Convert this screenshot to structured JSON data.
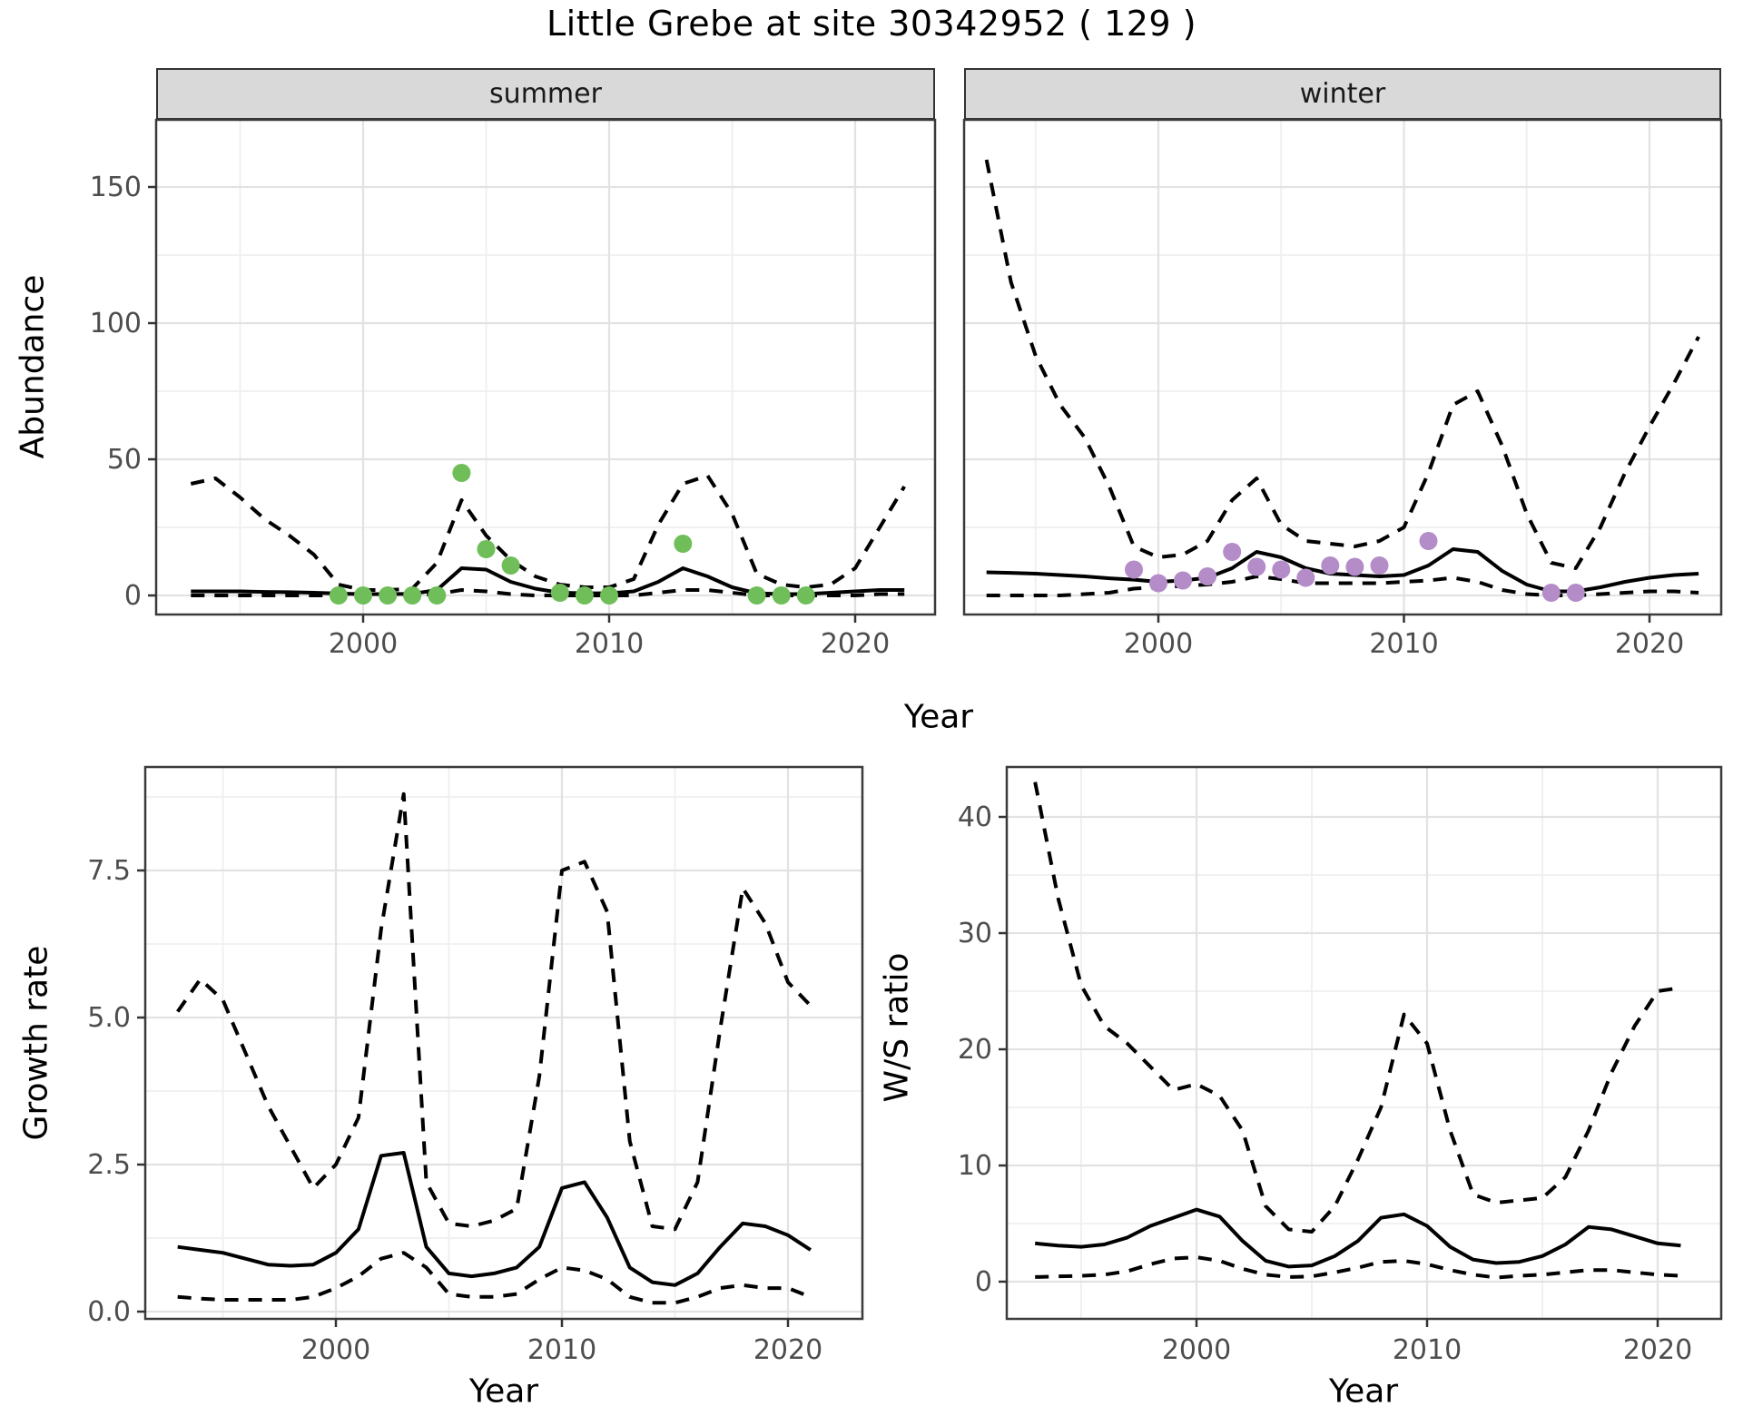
{
  "title": "Little Grebe at site 30342952 ( 129 )",
  "facets": {
    "summer": "summer",
    "winter": "winter"
  },
  "axis_labels": {
    "abundance_y": "Abundance",
    "top_x": "Year",
    "growth_y": "Growth rate",
    "growth_x": "Year",
    "ws_y": "W/S ratio",
    "ws_x": "Year"
  },
  "colors": {
    "summer_points": "#6fbe5a",
    "winter_points": "#b48cc7",
    "line": "#000000",
    "strip_fill": "#d9d9d9",
    "strip_border": "#333333",
    "panel_border": "#3a3a3a",
    "grid_major": "#e2e2e2",
    "grid_minor": "#efefef",
    "axis_text": "#4d4d4d",
    "tick_mark": "#333333"
  },
  "chart_data": [
    {
      "id": "summer",
      "type": "line",
      "facet": "summer",
      "xlabel": "Year",
      "ylabel": "Abundance",
      "xlim": [
        1992,
        2023
      ],
      "ylim": [
        0,
        175
      ],
      "xticks": [
        2000,
        2010,
        2020
      ],
      "xminor": [
        1995,
        2005,
        2015
      ],
      "yticks": [
        0,
        50,
        100,
        150
      ],
      "ytick_labels": [
        "0",
        "50",
        "100",
        "150"
      ],
      "yminor": [
        25,
        75,
        125,
        175
      ],
      "show_ylabels": true,
      "x_years": [
        1993,
        1994,
        1995,
        1996,
        1997,
        1998,
        1999,
        2000,
        2001,
        2002,
        2003,
        2004,
        2005,
        2006,
        2007,
        2008,
        2009,
        2010,
        2011,
        2012,
        2013,
        2014,
        2015,
        2016,
        2017,
        2018,
        2019,
        2020,
        2021,
        2022
      ],
      "series": [
        {
          "name": "upper_ci",
          "style": "dashed",
          "values": [
            41,
            43,
            36,
            28,
            22,
            15,
            4,
            2,
            2,
            2.5,
            12,
            35,
            22,
            13,
            7,
            4,
            3,
            3,
            6,
            26,
            41,
            44,
            30,
            8,
            4,
            3,
            4,
            10,
            25,
            40
          ]
        },
        {
          "name": "mean",
          "style": "solid",
          "values": [
            1.5,
            1.5,
            1.5,
            1.3,
            1.2,
            1,
            0.7,
            0.5,
            0.5,
            0.6,
            2,
            10,
            9.5,
            5,
            2.5,
            1,
            0.8,
            0.8,
            1.5,
            5,
            10,
            7,
            3,
            0.8,
            0.5,
            0.5,
            1,
            1.5,
            2,
            2
          ]
        },
        {
          "name": "lower_ci",
          "style": "dashed",
          "values": [
            0,
            0,
            0,
            0,
            0,
            0,
            0,
            0,
            0,
            0,
            0.5,
            2,
            1.5,
            0.5,
            0,
            0,
            0,
            0,
            0,
            1,
            2,
            2,
            1,
            0,
            0,
            0,
            0,
            0,
            0.5,
            0.5
          ]
        }
      ],
      "points": {
        "color_key": "summer_points",
        "data": [
          [
            1999,
            0
          ],
          [
            2000,
            0
          ],
          [
            2001,
            0
          ],
          [
            2002,
            0
          ],
          [
            2003,
            0
          ],
          [
            2004,
            45
          ],
          [
            2005,
            17
          ],
          [
            2006,
            11
          ],
          [
            2008,
            1
          ],
          [
            2009,
            0
          ],
          [
            2010,
            0
          ],
          [
            2013,
            19
          ],
          [
            2016,
            0
          ],
          [
            2017,
            0
          ],
          [
            2018,
            0
          ]
        ]
      }
    },
    {
      "id": "winter",
      "type": "line",
      "facet": "winter",
      "xlabel": "Year",
      "ylabel": "Abundance",
      "xlim": [
        1992,
        2023
      ],
      "ylim": [
        0,
        175
      ],
      "xticks": [
        2000,
        2010,
        2020
      ],
      "xminor": [
        1995,
        2005,
        2015
      ],
      "yticks": [
        0,
        50,
        100,
        150
      ],
      "ytick_labels": [
        "0",
        "50",
        "100",
        "150"
      ],
      "yminor": [
        25,
        75,
        125,
        175
      ],
      "show_ylabels": false,
      "x_years": [
        1993,
        1994,
        1995,
        1996,
        1997,
        1998,
        1999,
        2000,
        2001,
        2002,
        2003,
        2004,
        2005,
        2006,
        2007,
        2008,
        2009,
        2010,
        2011,
        2012,
        2013,
        2014,
        2015,
        2016,
        2017,
        2018,
        2019,
        2020,
        2021,
        2022
      ],
      "series": [
        {
          "name": "upper_ci",
          "style": "dashed",
          "values": [
            160,
            115,
            88,
            70,
            58,
            40,
            18,
            14,
            15,
            20,
            35,
            43,
            26,
            20,
            19,
            18,
            20,
            25,
            45,
            70,
            75,
            55,
            30,
            12,
            10,
            25,
            45,
            62,
            78,
            95
          ]
        },
        {
          "name": "mean",
          "style": "solid",
          "values": [
            8.5,
            8.3,
            8,
            7.5,
            7,
            6.3,
            5.8,
            5,
            5.5,
            6.5,
            10,
            16,
            14,
            10,
            8,
            7.5,
            7,
            7.5,
            11,
            17,
            16,
            9,
            4,
            1.5,
            1.5,
            3,
            5,
            6.5,
            7.5,
            8
          ]
        },
        {
          "name": "lower_ci",
          "style": "dashed",
          "values": [
            0,
            0,
            0,
            0,
            0.5,
            1,
            2.5,
            3,
            3.5,
            4,
            5,
            7,
            6,
            4.5,
            4.5,
            4.5,
            4.5,
            5,
            5.5,
            6.5,
            5,
            2,
            0.5,
            0,
            0,
            0.5,
            1,
            1.5,
            1.5,
            1
          ]
        }
      ],
      "points": {
        "color_key": "winter_points",
        "data": [
          [
            1999,
            9.5
          ],
          [
            2000,
            4.5
          ],
          [
            2001,
            5.5
          ],
          [
            2002,
            7
          ],
          [
            2003,
            16
          ],
          [
            2004,
            10.5
          ],
          [
            2005,
            9.5
          ],
          [
            2006,
            6.5
          ],
          [
            2007,
            11
          ],
          [
            2008,
            10.5
          ],
          [
            2009,
            11
          ],
          [
            2011,
            20
          ],
          [
            2016,
            1
          ],
          [
            2017,
            1
          ]
        ]
      }
    },
    {
      "id": "growth",
      "type": "line",
      "facet": null,
      "xlabel": "Year",
      "ylabel": "Growth rate",
      "xlim": [
        1992,
        2023
      ],
      "ylim": [
        0,
        9
      ],
      "xticks": [
        2000,
        2010,
        2020
      ],
      "xminor": [
        1995,
        2005,
        2015
      ],
      "yticks": [
        0,
        2.5,
        5,
        7.5
      ],
      "ytick_labels": [
        "0.0",
        "2.5",
        "5.0",
        "7.5"
      ],
      "yminor": [
        1.25,
        3.75,
        6.25,
        8.75
      ],
      "show_ylabels": true,
      "x_years": [
        1993,
        1994,
        1995,
        1996,
        1997,
        1998,
        1999,
        2000,
        2001,
        2002,
        2003,
        2004,
        2005,
        2006,
        2007,
        2008,
        2009,
        2010,
        2011,
        2012,
        2013,
        2014,
        2015,
        2016,
        2017,
        2018,
        2019,
        2020,
        2021
      ],
      "series": [
        {
          "name": "upper_ci",
          "style": "dashed",
          "values": [
            5.1,
            5.65,
            5.3,
            4.4,
            3.5,
            2.8,
            2.1,
            2.5,
            3.3,
            6.5,
            8.8,
            2.2,
            1.5,
            1.45,
            1.55,
            1.75,
            4.0,
            7.5,
            7.65,
            6.8,
            2.9,
            1.45,
            1.4,
            2.2,
            4.8,
            7.2,
            6.6,
            5.6,
            5.2
          ]
        },
        {
          "name": "mean",
          "style": "solid",
          "values": [
            1.1,
            1.05,
            1.0,
            0.9,
            0.8,
            0.78,
            0.8,
            1.0,
            1.4,
            2.65,
            2.7,
            1.1,
            0.65,
            0.6,
            0.65,
            0.75,
            1.1,
            2.1,
            2.2,
            1.6,
            0.75,
            0.5,
            0.45,
            0.65,
            1.1,
            1.5,
            1.45,
            1.3,
            1.05
          ]
        },
        {
          "name": "lower_ci",
          "style": "dashed",
          "values": [
            0.25,
            0.22,
            0.2,
            0.2,
            0.2,
            0.2,
            0.25,
            0.4,
            0.6,
            0.9,
            1.0,
            0.75,
            0.3,
            0.25,
            0.25,
            0.3,
            0.55,
            0.75,
            0.7,
            0.55,
            0.25,
            0.15,
            0.15,
            0.25,
            0.4,
            0.45,
            0.4,
            0.4,
            0.25
          ]
        }
      ],
      "points": null
    },
    {
      "id": "ws",
      "type": "line",
      "facet": null,
      "xlabel": "Year",
      "ylabel": "W/S ratio",
      "xlim": [
        1992,
        2023
      ],
      "ylim": [
        0,
        44
      ],
      "xticks": [
        2000,
        2010,
        2020
      ],
      "xminor": [
        1995,
        2005,
        2015
      ],
      "yticks": [
        0,
        10,
        20,
        30,
        40
      ],
      "ytick_labels": [
        "0",
        "10",
        "20",
        "30",
        "40"
      ],
      "yminor": [
        5,
        15,
        25,
        35
      ],
      "show_ylabels": true,
      "x_years": [
        1993,
        1994,
        1995,
        1996,
        1997,
        1998,
        1999,
        2000,
        2001,
        2002,
        2003,
        2004,
        2005,
        2006,
        2007,
        2008,
        2009,
        2010,
        2011,
        2012,
        2013,
        2014,
        2015,
        2016,
        2017,
        2018,
        2019,
        2020,
        2021
      ],
      "series": [
        {
          "name": "upper_ci",
          "style": "dashed",
          "values": [
            43,
            33,
            25.5,
            22,
            20.5,
            18.5,
            16.5,
            17,
            16,
            13,
            6.5,
            4.5,
            4.3,
            6.5,
            10.5,
            15,
            23,
            20.5,
            13,
            7.5,
            6.8,
            7,
            7.2,
            9,
            13,
            18,
            22,
            25,
            25.3
          ]
        },
        {
          "name": "mean",
          "style": "solid",
          "values": [
            3.3,
            3.1,
            3.0,
            3.2,
            3.8,
            4.8,
            5.5,
            6.2,
            5.6,
            3.5,
            1.8,
            1.3,
            1.4,
            2.2,
            3.5,
            5.5,
            5.8,
            4.8,
            3.0,
            1.9,
            1.6,
            1.7,
            2.2,
            3.2,
            4.7,
            4.5,
            3.9,
            3.3,
            3.1
          ]
        },
        {
          "name": "lower_ci",
          "style": "dashed",
          "values": [
            0.4,
            0.45,
            0.5,
            0.6,
            0.9,
            1.5,
            2.0,
            2.1,
            1.8,
            1.1,
            0.6,
            0.4,
            0.45,
            0.8,
            1.2,
            1.7,
            1.8,
            1.5,
            1.0,
            0.6,
            0.35,
            0.5,
            0.6,
            0.8,
            1.0,
            1.0,
            0.8,
            0.6,
            0.5
          ]
        }
      ],
      "points": null
    }
  ]
}
